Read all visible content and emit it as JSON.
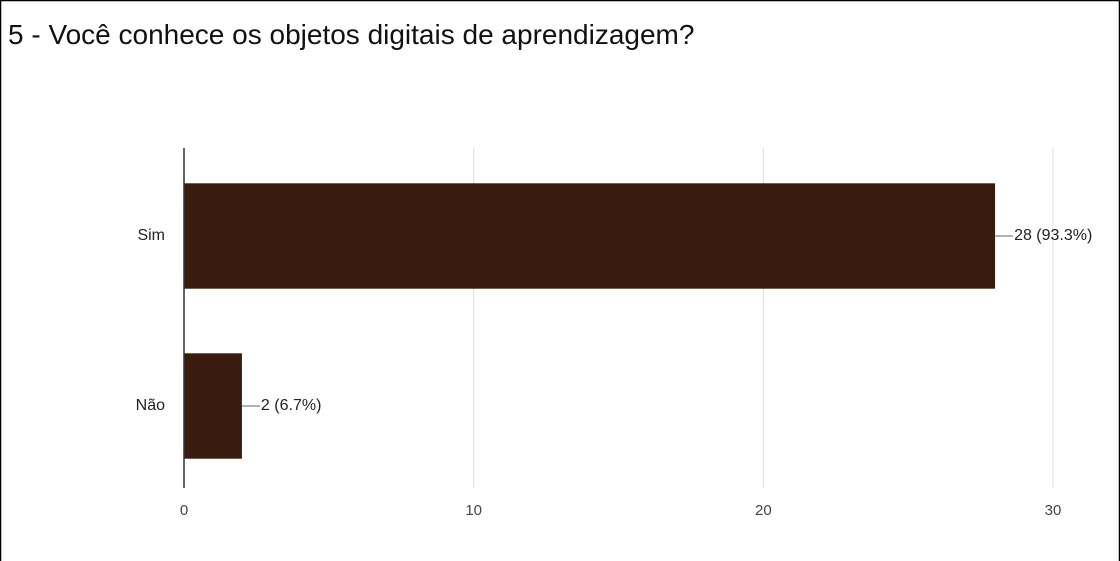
{
  "chart_data": {
    "type": "bar",
    "orientation": "horizontal",
    "title": "5 - Você conhece os objetos digitais de aprendizagem?",
    "categories": [
      "Sim",
      "Não"
    ],
    "values": [
      28,
      2
    ],
    "value_labels": [
      "28 (93.3%)",
      "2 (6.7%)"
    ],
    "color": "#3a1c0e",
    "xlim": [
      0,
      30
    ],
    "xticks": [
      0,
      10,
      20,
      30
    ],
    "grid": true
  }
}
